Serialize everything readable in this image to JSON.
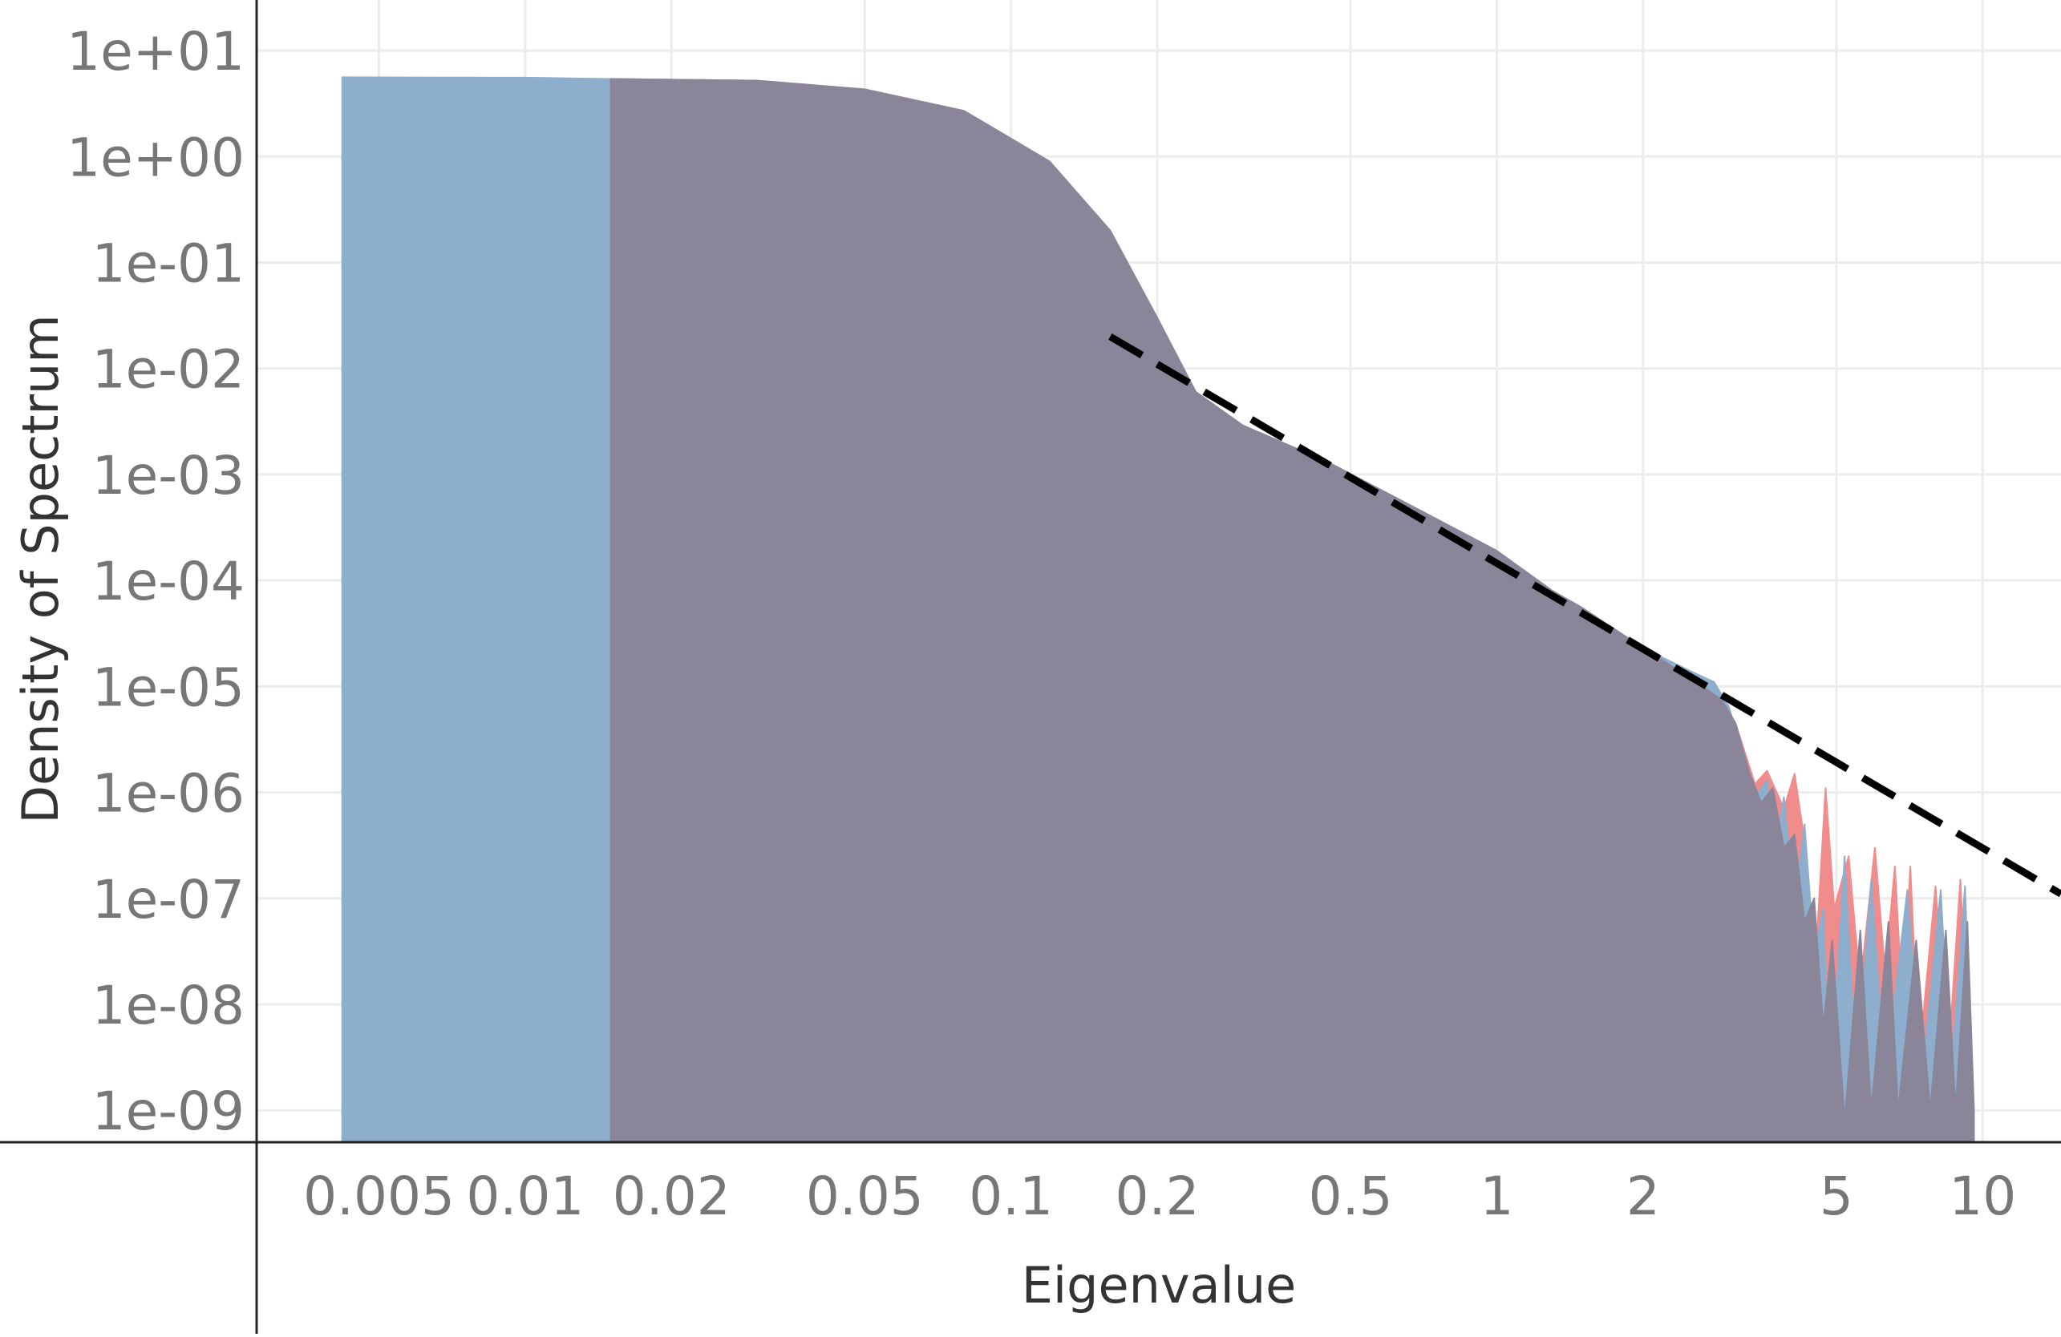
{
  "chart_data": {
    "type": "area",
    "title": "",
    "xlabel": "Eigenvalue",
    "ylabel": "Density of Spectrum",
    "x_scale": "log",
    "y_scale": "log",
    "xlim": [
      0.0028,
      14.5
    ],
    "ylim": [
      5e-10,
      30
    ],
    "grid": true,
    "legend": "none",
    "x_ticks": [
      {
        "value": 0.005,
        "label": "0.005"
      },
      {
        "value": 0.01,
        "label": "0.01"
      },
      {
        "value": 0.02,
        "label": "0.02"
      },
      {
        "value": 0.05,
        "label": "0.05"
      },
      {
        "value": 0.1,
        "label": "0.1"
      },
      {
        "value": 0.2,
        "label": "0.2"
      },
      {
        "value": 0.5,
        "label": "0.5"
      },
      {
        "value": 1,
        "label": "1"
      },
      {
        "value": 2,
        "label": "2"
      },
      {
        "value": 5,
        "label": "5"
      },
      {
        "value": 10,
        "label": "10"
      }
    ],
    "y_ticks": [
      {
        "value": 10,
        "label": "1e+01"
      },
      {
        "value": 1,
        "label": "1e+00"
      },
      {
        "value": 0.1,
        "label": "1e-01"
      },
      {
        "value": 0.01,
        "label": "1e-02"
      },
      {
        "value": 0.001,
        "label": "1e-03"
      },
      {
        "value": 0.0001,
        "label": "1e-04"
      },
      {
        "value": 1e-05,
        "label": "1e-05"
      },
      {
        "value": 1e-06,
        "label": "1e-06"
      },
      {
        "value": 1e-07,
        "label": "1e-07"
      },
      {
        "value": 1e-08,
        "label": "1e-08"
      },
      {
        "value": 1e-09,
        "label": "1e-09"
      }
    ],
    "series": [
      {
        "color": "#f08c8c",
        "points": [
          [
            0.015,
            5.4
          ],
          [
            0.03,
            5.2
          ],
          [
            0.05,
            4.3
          ],
          [
            0.08,
            2.7
          ],
          [
            0.12,
            0.9
          ],
          [
            0.16,
            0.2
          ],
          [
            0.2,
            0.03
          ],
          [
            0.24,
            0.006
          ],
          [
            0.3,
            0.0029
          ],
          [
            0.45,
            0.0013
          ],
          [
            0.7,
            0.00045
          ],
          [
            1.0,
            0.00019
          ],
          [
            1.3,
            8e-05
          ],
          [
            1.5,
            5.5e-05
          ],
          [
            2.0,
            2.3e-05
          ],
          [
            2.5,
            1.2e-05
          ],
          [
            2.9,
            7.5e-06
          ],
          [
            3.1,
            4.5e-06
          ],
          [
            3.4,
            1.2e-06
          ],
          [
            3.6,
            1.6e-06
          ],
          [
            3.9,
            7e-07
          ],
          [
            4.1,
            1.5e-06
          ],
          [
            4.3,
            3.5e-07
          ],
          [
            4.5,
            1.5e-08
          ],
          [
            4.75,
            1.1e-06
          ],
          [
            4.95,
            8e-08
          ],
          [
            5.3,
            2.5e-07
          ],
          [
            5.6,
            1.5e-08
          ],
          [
            6.0,
            3e-07
          ],
          [
            6.3,
            2e-08
          ],
          [
            6.6,
            2e-07
          ],
          [
            6.85,
            8e-09
          ],
          [
            7.1,
            2e-07
          ],
          [
            7.4,
            3e-09
          ],
          [
            8.0,
            1.3e-07
          ],
          [
            8.5,
            3e-09
          ],
          [
            9.0,
            1.5e-07
          ],
          [
            9.4,
            2e-09
          ]
        ]
      },
      {
        "color": "#8eaecd",
        "points": [
          [
            0.0042,
            5.6
          ],
          [
            0.01,
            5.55
          ],
          [
            0.015,
            5.4
          ],
          [
            0.03,
            5.2
          ],
          [
            0.05,
            4.3
          ],
          [
            0.08,
            2.7
          ],
          [
            0.12,
            0.9
          ],
          [
            0.16,
            0.2
          ],
          [
            0.2,
            0.03
          ],
          [
            0.24,
            0.006
          ],
          [
            0.3,
            0.0029
          ],
          [
            0.45,
            0.0013
          ],
          [
            0.7,
            0.00045
          ],
          [
            1.0,
            0.00019
          ],
          [
            1.3,
            8e-05
          ],
          [
            1.5,
            5.5e-05
          ],
          [
            2.0,
            2.3e-05
          ],
          [
            2.5,
            1.4e-05
          ],
          [
            2.8,
            1.1e-05
          ],
          [
            3.0,
            6.5e-06
          ],
          [
            3.2,
            2.5e-06
          ],
          [
            3.4,
            9e-07
          ],
          [
            3.6,
            1.3e-06
          ],
          [
            3.75,
            3e-07
          ],
          [
            3.9,
            9e-07
          ],
          [
            4.1,
            9e-08
          ],
          [
            4.3,
            5e-07
          ],
          [
            4.5,
            3e-08
          ],
          [
            4.7,
            8e-08
          ],
          [
            4.85,
            1.2e-09
          ],
          [
            5.2,
            2.5e-07
          ],
          [
            5.5,
            2e-09
          ],
          [
            5.9,
            1.5e-07
          ],
          [
            6.3,
            2e-09
          ],
          [
            7.0,
            1.2e-07
          ],
          [
            7.5,
            2e-09
          ],
          [
            8.2,
            1.2e-07
          ],
          [
            8.6,
            2e-09
          ],
          [
            9.2,
            1.3e-07
          ],
          [
            9.5,
            2e-09
          ]
        ]
      },
      {
        "color": "#8b8599",
        "points": [
          [
            0.015,
            5.4
          ],
          [
            0.03,
            5.2
          ],
          [
            0.05,
            4.3
          ],
          [
            0.08,
            2.7
          ],
          [
            0.12,
            0.9
          ],
          [
            0.16,
            0.2
          ],
          [
            0.2,
            0.03
          ],
          [
            0.24,
            0.006
          ],
          [
            0.3,
            0.0029
          ],
          [
            0.45,
            0.0013
          ],
          [
            0.7,
            0.00045
          ],
          [
            1.0,
            0.00019
          ],
          [
            1.3,
            8e-05
          ],
          [
            1.5,
            5.5e-05
          ],
          [
            2.0,
            2.3e-05
          ],
          [
            2.5,
            1.2e-05
          ],
          [
            2.9,
            7.5e-06
          ],
          [
            3.1,
            4.5e-06
          ],
          [
            3.3,
            1.6e-06
          ],
          [
            3.5,
            8e-07
          ],
          [
            3.7,
            1.1e-06
          ],
          [
            3.9,
            3e-07
          ],
          [
            4.1,
            4e-07
          ],
          [
            4.3,
            6e-08
          ],
          [
            4.5,
            1e-07
          ],
          [
            4.7,
            6e-09
          ],
          [
            4.9,
            4e-08
          ],
          [
            5.2,
            8e-10
          ],
          [
            5.6,
            5e-08
          ],
          [
            5.9,
            1e-09
          ],
          [
            6.4,
            6e-08
          ],
          [
            6.7,
            1e-09
          ],
          [
            7.3,
            4e-08
          ],
          [
            7.8,
            1e-09
          ],
          [
            8.4,
            5e-08
          ],
          [
            8.8,
            1e-09
          ],
          [
            9.3,
            6e-08
          ],
          [
            9.6,
            1e-09
          ]
        ]
      }
    ],
    "reference_line": {
      "style": "dashed",
      "color": "#000000",
      "points": [
        [
          0.16,
          0.02
        ],
        [
          14.5,
          1.1e-07
        ]
      ]
    }
  }
}
